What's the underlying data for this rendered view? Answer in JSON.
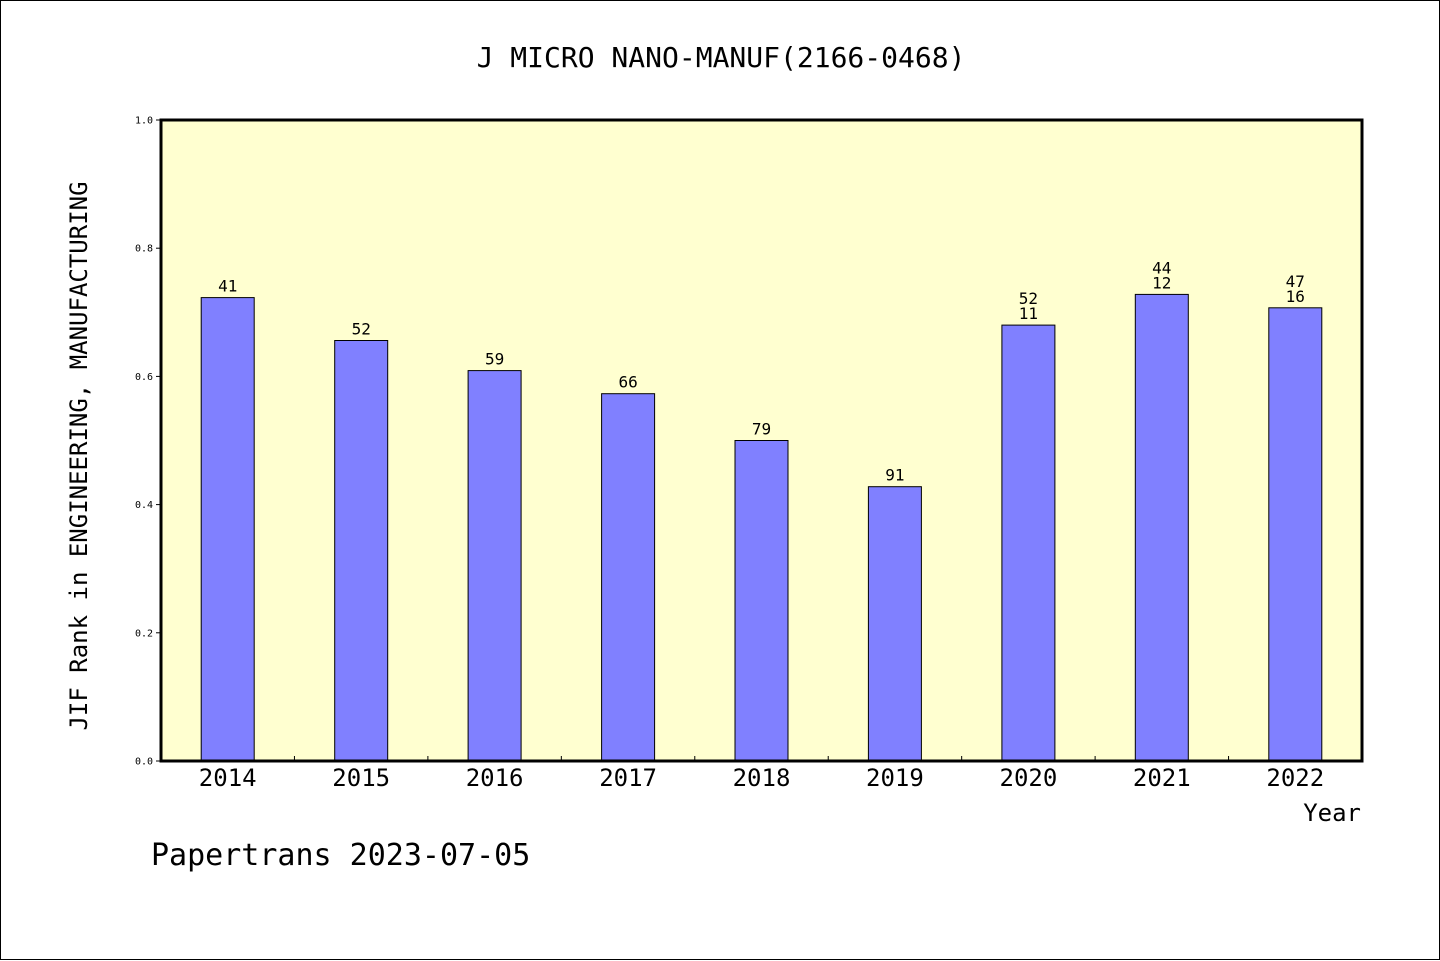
{
  "chart_data": {
    "type": "bar",
    "title": "J MICRO NANO-MANUF(2166-0468)",
    "xlabel": "Year",
    "ylabel": "JIF Rank in ENGINEERING, MANUFACTURING",
    "ylim": [
      0,
      1.0
    ],
    "yticks": [
      "0.0",
      "0.2",
      "0.4",
      "0.6",
      "0.8",
      "1.0"
    ],
    "categories": [
      "2014",
      "2015",
      "2016",
      "2017",
      "2018",
      "2019",
      "2020",
      "2021",
      "2022"
    ],
    "series": [
      {
        "values": [
          0.723,
          0.656,
          0.609,
          0.573,
          0.5,
          0.428,
          0.68,
          0.728,
          0.707
        ],
        "labels": [
          [
            "41"
          ],
          [
            "52"
          ],
          [
            "59"
          ],
          [
            "66"
          ],
          [
            "79"
          ],
          [
            "91"
          ],
          [
            "52",
            "11"
          ],
          [
            "44",
            "12"
          ],
          [
            "47",
            "16"
          ]
        ]
      }
    ],
    "grid": false,
    "plot_background": "#ffffd0",
    "bar_color": "#8080ff",
    "footer": "Papertrans 2023-07-05"
  }
}
